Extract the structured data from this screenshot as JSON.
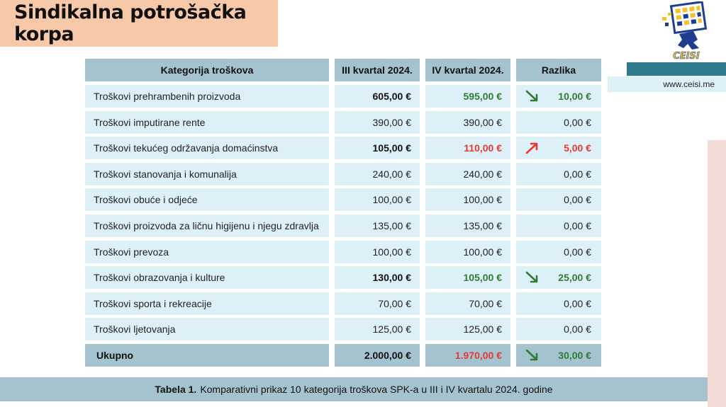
{
  "header": {
    "title": "Sindikalna potrošačka korpa"
  },
  "brand": {
    "logo_text": "CEISI",
    "website": "www.ceisi.me"
  },
  "table": {
    "headers": [
      "Kategorija troškova",
      "III kvartal 2024.",
      "IV kvartal 2024.",
      "Razlika"
    ],
    "rows": [
      {
        "category": "Troškovi prehrambenih proizvoda",
        "q3": "605,00 €",
        "q4": "595,00 €",
        "diff": "10,00 €",
        "trend": "down"
      },
      {
        "category": "Troškovi imputirane rente",
        "q3": "390,00 €",
        "q4": "390,00 €",
        "diff": "0,00 €",
        "trend": "none"
      },
      {
        "category": "Troškovi tekućeg održavanja domaćinstva",
        "q3": "105,00 €",
        "q4": "110,00 €",
        "diff": "5,00 €",
        "trend": "up"
      },
      {
        "category": "Troškovi stanovanja i komunalija",
        "q3": "240,00 €",
        "q4": "240,00 €",
        "diff": "0,00 €",
        "trend": "none"
      },
      {
        "category": "Troškovi obuće i odjeće",
        "q3": "100,00 €",
        "q4": "100,00 €",
        "diff": "0,00 €",
        "trend": "none"
      },
      {
        "category": "Troškovi proizvoda za ličnu higijenu i njegu zdravlja",
        "q3": "135,00 €",
        "q4": "135,00 €",
        "diff": "0,00 €",
        "trend": "none"
      },
      {
        "category": "Troškovi prevoza",
        "q3": "100,00 €",
        "q4": "100,00 €",
        "diff": "0,00 €",
        "trend": "none"
      },
      {
        "category": "Troškovi obrazovanja i kulture",
        "q3": "130,00 €",
        "q4": "105,00 €",
        "diff": "25,00 €",
        "trend": "down"
      },
      {
        "category": "Troškovi sporta i rekreacije",
        "q3": "70,00 €",
        "q4": "70,00 €",
        "diff": "0,00 €",
        "trend": "none"
      },
      {
        "category": "Troškovi ljetovanja",
        "q3": "125,00 €",
        "q4": "125,00 €",
        "diff": "0,00 €",
        "trend": "none"
      }
    ],
    "total": {
      "category": "Ukupno",
      "q3": "2.000,00 €",
      "q4": "1.970,00 €",
      "diff": "30,00 €",
      "trend": "down"
    }
  },
  "caption": {
    "label": "Tabela 1.",
    "text": "Komparativni prikaz 10 kategorija troškova SPK-a u III i IV kvartalu 2024. godine"
  },
  "colors": {
    "increase": "#e53935",
    "decrease": "#2e7d32",
    "header_bg": "#a5c3ce",
    "row_bg": "#ddf0f8",
    "title_bg": "#f8c9a8"
  }
}
